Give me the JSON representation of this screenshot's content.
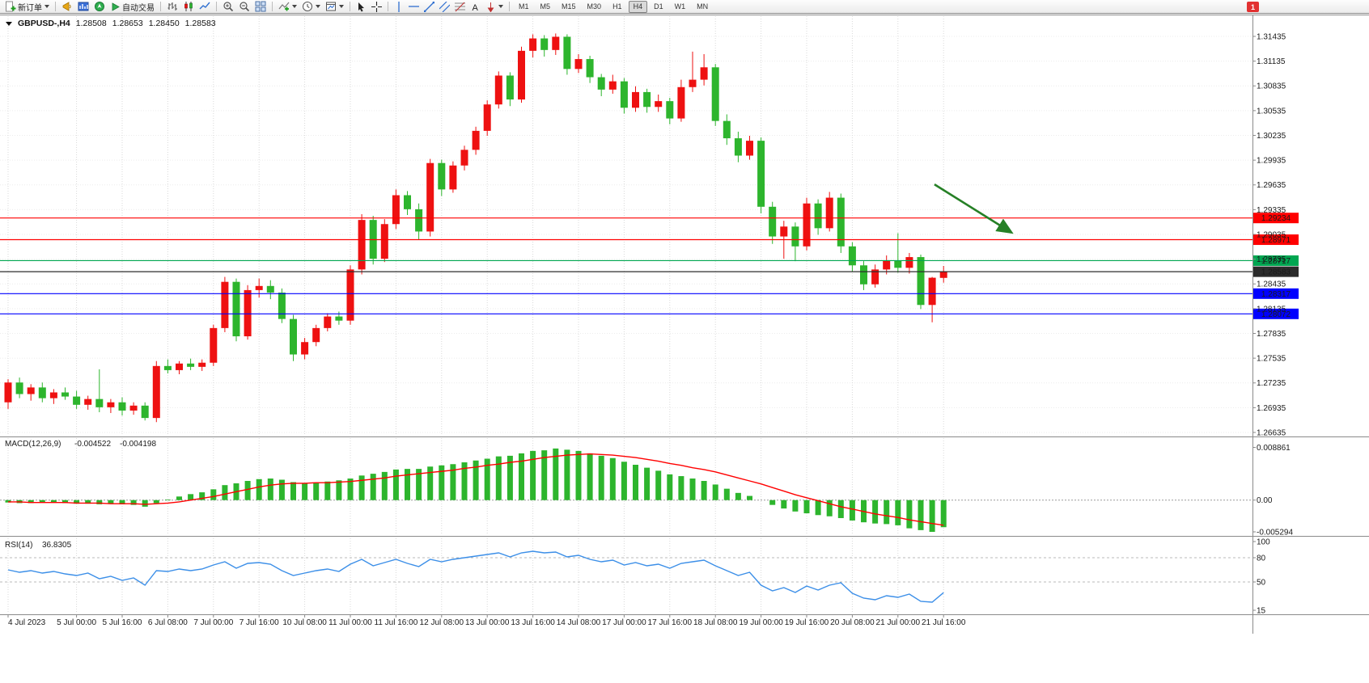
{
  "toolbar": {
    "new_order_label": "新订单",
    "autotrading_label": "自动交易",
    "text_tool_label": "A",
    "timeframes": [
      "M1",
      "M5",
      "M15",
      "M30",
      "H1",
      "H4",
      "D1",
      "W1",
      "MN"
    ],
    "active_timeframe": "H4",
    "notification_badge": "1"
  },
  "chart_header": {
    "symbol_period": "GBPUSD-,H4",
    "open": "1.28508",
    "high": "1.28653",
    "low": "1.28450",
    "close": "1.28583"
  },
  "chart_data": {
    "type": "candlestick",
    "symbol": "GBPUSD-",
    "period": "H4",
    "up_color": "#ee1111",
    "down_color": "#2db52d",
    "price_ticks": [
      "1.26635",
      "1.26935",
      "1.27235",
      "1.27535",
      "1.27835",
      "1.28135",
      "1.28435",
      "1.28735",
      "1.29035",
      "1.29335",
      "1.29635",
      "1.29935",
      "1.30235",
      "1.30535",
      "1.30835",
      "1.31135",
      "1.31435"
    ],
    "candles": [
      [
        1.27,
        1.2728,
        1.2692,
        1.2724
      ],
      [
        1.2724,
        1.273,
        1.2705,
        1.271
      ],
      [
        1.271,
        1.2722,
        1.2702,
        1.2718
      ],
      [
        1.2718,
        1.2724,
        1.27,
        1.2705
      ],
      [
        1.2705,
        1.2716,
        1.2698,
        1.2712
      ],
      [
        1.2712,
        1.2718,
        1.2703,
        1.2707
      ],
      [
        1.2707,
        1.2714,
        1.2692,
        1.2697
      ],
      [
        1.2697,
        1.2708,
        1.2691,
        1.2704
      ],
      [
        1.2704,
        1.274,
        1.2688,
        1.2694
      ],
      [
        1.2694,
        1.2704,
        1.2687,
        1.27
      ],
      [
        1.27,
        1.2706,
        1.2684,
        1.269
      ],
      [
        1.269,
        1.27,
        1.2685,
        1.2696
      ],
      [
        1.2696,
        1.27,
        1.2678,
        1.2681
      ],
      [
        1.2681,
        1.275,
        1.2676,
        1.2744
      ],
      [
        1.2744,
        1.2752,
        1.2735,
        1.2739
      ],
      [
        1.2739,
        1.275,
        1.2734,
        1.2747
      ],
      [
        1.2747,
        1.2753,
        1.2739,
        1.2743
      ],
      [
        1.2743,
        1.2752,
        1.2738,
        1.2748
      ],
      [
        1.2748,
        1.2794,
        1.2744,
        1.279
      ],
      [
        1.279,
        1.2852,
        1.2785,
        1.2846
      ],
      [
        1.2846,
        1.285,
        1.2774,
        1.278
      ],
      [
        1.278,
        1.2842,
        1.2776,
        1.2836
      ],
      [
        1.2836,
        1.285,
        1.2827,
        1.2841
      ],
      [
        1.2841,
        1.2848,
        1.2825,
        1.2833
      ],
      [
        1.2833,
        1.2838,
        1.2796,
        1.2801
      ],
      [
        1.2801,
        1.2806,
        1.275,
        1.2758
      ],
      [
        1.2758,
        1.2778,
        1.2752,
        1.2773
      ],
      [
        1.2773,
        1.2794,
        1.2768,
        1.279
      ],
      [
        1.279,
        1.2808,
        1.2786,
        1.2804
      ],
      [
        1.2804,
        1.281,
        1.2794,
        1.2799
      ],
      [
        1.2799,
        1.2866,
        1.2794,
        1.2861
      ],
      [
        1.2861,
        1.2928,
        1.2855,
        1.2921
      ],
      [
        1.2921,
        1.2926,
        1.2867,
        1.2874
      ],
      [
        1.2874,
        1.2922,
        1.287,
        1.2916
      ],
      [
        1.2916,
        1.2958,
        1.291,
        1.2951
      ],
      [
        1.2951,
        1.2956,
        1.2927,
        1.2934
      ],
      [
        1.2934,
        1.2941,
        1.2897,
        1.2907
      ],
      [
        1.2907,
        1.2995,
        1.2901,
        1.299
      ],
      [
        1.299,
        1.2994,
        1.295,
        1.2958
      ],
      [
        1.2958,
        1.2992,
        1.2954,
        1.2987
      ],
      [
        1.2987,
        1.3011,
        1.2981,
        1.3006
      ],
      [
        1.3006,
        1.3034,
        1.3,
        1.3029
      ],
      [
        1.3029,
        1.3066,
        1.3023,
        1.3061
      ],
      [
        1.3061,
        1.3101,
        1.3056,
        1.3096
      ],
      [
        1.3096,
        1.31,
        1.3059,
        1.3067
      ],
      [
        1.3067,
        1.3131,
        1.3063,
        1.3126
      ],
      [
        1.3126,
        1.3146,
        1.3118,
        1.3141
      ],
      [
        1.3141,
        1.3145,
        1.3119,
        1.3127
      ],
      [
        1.3127,
        1.3147,
        1.3121,
        1.3143
      ],
      [
        1.3143,
        1.3146,
        1.3097,
        1.3104
      ],
      [
        1.3104,
        1.3122,
        1.3099,
        1.3116
      ],
      [
        1.3116,
        1.312,
        1.3087,
        1.3094
      ],
      [
        1.3094,
        1.3098,
        1.3071,
        1.3079
      ],
      [
        1.3079,
        1.3097,
        1.3074,
        1.3089
      ],
      [
        1.3089,
        1.3093,
        1.305,
        1.3057
      ],
      [
        1.3057,
        1.3083,
        1.3052,
        1.3076
      ],
      [
        1.3076,
        1.308,
        1.3051,
        1.3058
      ],
      [
        1.3058,
        1.3073,
        1.3052,
        1.3065
      ],
      [
        1.3065,
        1.3069,
        1.3037,
        1.3044
      ],
      [
        1.3044,
        1.3091,
        1.304,
        1.3082
      ],
      [
        1.3082,
        1.3125,
        1.3076,
        1.3091
      ],
      [
        1.3091,
        1.3122,
        1.3084,
        1.3106
      ],
      [
        1.3106,
        1.311,
        1.3035,
        1.3041
      ],
      [
        1.3041,
        1.3049,
        1.3012,
        1.302
      ],
      [
        1.302,
        1.3028,
        1.2991,
        1.2999
      ],
      [
        1.2999,
        1.3023,
        1.2994,
        1.3017
      ],
      [
        1.3017,
        1.3021,
        1.2929,
        1.2937
      ],
      [
        1.2937,
        1.2943,
        1.2892,
        1.2901
      ],
      [
        1.2901,
        1.292,
        1.2874,
        1.2913
      ],
      [
        1.2913,
        1.2918,
        1.2871,
        1.2889
      ],
      [
        1.2889,
        1.2948,
        1.2884,
        1.2941
      ],
      [
        1.2941,
        1.2946,
        1.2903,
        1.2911
      ],
      [
        1.2911,
        1.2955,
        1.2907,
        1.2948
      ],
      [
        1.2948,
        1.2953,
        1.2881,
        1.2889
      ],
      [
        1.2889,
        1.2894,
        1.2858,
        1.2866
      ],
      [
        1.2866,
        1.2871,
        1.2836,
        1.2843
      ],
      [
        1.2843,
        1.2867,
        1.2839,
        1.2861
      ],
      [
        1.2861,
        1.2878,
        1.2855,
        1.2872
      ],
      [
        1.2872,
        1.2905,
        1.2857,
        1.2863
      ],
      [
        1.2863,
        1.2881,
        1.2856,
        1.2876
      ],
      [
        1.2876,
        1.2879,
        1.2813,
        1.2818
      ],
      [
        1.2818,
        1.2852,
        1.2797,
        1.2851
      ],
      [
        1.28508,
        1.28653,
        1.2845,
        1.28583
      ]
    ],
    "time_labels": [
      {
        "text": "4 Jul 2023",
        "bar": 0
      },
      {
        "text": "5 Jul 00:00",
        "bar": 6
      },
      {
        "text": "5 Jul 16:00",
        "bar": 10
      },
      {
        "text": "6 Jul 08:00",
        "bar": 14
      },
      {
        "text": "7 Jul 00:00",
        "bar": 18
      },
      {
        "text": "7 Jul 16:00",
        "bar": 22
      },
      {
        "text": "10 Jul 08:00",
        "bar": 26
      },
      {
        "text": "11 Jul 00:00",
        "bar": 30
      },
      {
        "text": "11 Jul 16:00",
        "bar": 34
      },
      {
        "text": "12 Jul 08:00",
        "bar": 38
      },
      {
        "text": "13 Jul 00:00",
        "bar": 42
      },
      {
        "text": "13 Jul 16:00",
        "bar": 46
      },
      {
        "text": "14 Jul 08:00",
        "bar": 50
      },
      {
        "text": "17 Jul 00:00",
        "bar": 54
      },
      {
        "text": "17 Jul 16:00",
        "bar": 58
      },
      {
        "text": "18 Jul 08:00",
        "bar": 62
      },
      {
        "text": "19 Jul 00:00",
        "bar": 66
      },
      {
        "text": "19 Jul 16:00",
        "bar": 70
      },
      {
        "text": "20 Jul 08:00",
        "bar": 74
      },
      {
        "text": "21 Jul 00:00",
        "bar": 78
      },
      {
        "text": "21 Jul 16:00",
        "bar": 82
      }
    ],
    "hlines": [
      {
        "price": 1.29234,
        "label": "1.29234",
        "color": "#ff0000"
      },
      {
        "price": 1.28971,
        "label": "1.28971",
        "color": "#ff0000"
      },
      {
        "price": 1.28717,
        "label": "1.28717",
        "color": "#00a651"
      },
      {
        "price": 1.28583,
        "label": "1.28583",
        "color": "#2b2b2b"
      },
      {
        "price": 1.28317,
        "label": "1.28317",
        "color": "#0000ff"
      },
      {
        "price": 1.28072,
        "label": "1.28072",
        "color": "#0000ff"
      }
    ],
    "arrow_object": {
      "from_bar": 81.2,
      "from_price": 1.29641,
      "to_bar": 87.9,
      "to_price": 1.29062,
      "color": "#268026"
    },
    "macd": {
      "name": "MACD(12,26,9)",
      "main_value": "-0.004522",
      "signal_value": "-0.004198",
      "histogram_color": "#2db52d",
      "signal_color": "#ff0000",
      "scale": {
        "max": 0.008861,
        "min": -0.005294,
        "labels": [
          "0.008861",
          "0.00",
          "-0.005294"
        ]
      },
      "histogram": [
        -0.0004,
        -0.0005,
        -0.0005,
        -0.0004,
        -0.0004,
        -0.0005,
        -0.0006,
        -0.0006,
        -0.0007,
        -0.0006,
        -0.0007,
        -0.0008,
        -0.0011,
        -0.0005,
        0.0001,
        0.0006,
        0.001,
        0.0013,
        0.0018,
        0.0025,
        0.0028,
        0.0032,
        0.0035,
        0.0036,
        0.0034,
        0.003,
        0.0028,
        0.0029,
        0.0031,
        0.0033,
        0.0036,
        0.0041,
        0.0044,
        0.0047,
        0.0051,
        0.0052,
        0.0052,
        0.0056,
        0.0058,
        0.006,
        0.0063,
        0.0066,
        0.0069,
        0.0073,
        0.0074,
        0.0078,
        0.0082,
        0.0083,
        0.0086,
        0.0084,
        0.0082,
        0.0078,
        0.0074,
        0.007,
        0.0064,
        0.0059,
        0.0054,
        0.0049,
        0.0043,
        0.004,
        0.0036,
        0.0032,
        0.0026,
        0.0019,
        0.0012,
        0.0007,
        0.0,
        -0.0008,
        -0.0014,
        -0.0019,
        -0.0022,
        -0.0025,
        -0.0027,
        -0.003,
        -0.0034,
        -0.0037,
        -0.0039,
        -0.004,
        -0.0042,
        -0.0047,
        -0.005,
        -0.005294,
        -0.004522
      ],
      "signal": [
        -0.0003,
        -0.0003,
        -0.0004,
        -0.0004,
        -0.0004,
        -0.0004,
        -0.0005,
        -0.0005,
        -0.0005,
        -0.0006,
        -0.0006,
        -0.0006,
        -0.0007,
        -0.0006,
        -0.0005,
        -0.0003,
        0.0,
        0.0003,
        0.0006,
        0.001,
        0.0014,
        0.0018,
        0.0022,
        0.0025,
        0.0027,
        0.0028,
        0.0028,
        0.0029,
        0.0029,
        0.003,
        0.0031,
        0.0033,
        0.0035,
        0.0037,
        0.004,
        0.0042,
        0.0044,
        0.0046,
        0.0048,
        0.005,
        0.0053,
        0.0055,
        0.0058,
        0.006,
        0.0063,
        0.0065,
        0.0068,
        0.0071,
        0.0073,
        0.0075,
        0.0076,
        0.0077,
        0.0076,
        0.0075,
        0.0073,
        0.0071,
        0.0068,
        0.0065,
        0.0061,
        0.0058,
        0.0054,
        0.0051,
        0.0047,
        0.0042,
        0.0037,
        0.0032,
        0.0027,
        0.0021,
        0.0015,
        0.0009,
        0.0004,
        -0.0001,
        -0.0006,
        -0.0011,
        -0.0015,
        -0.0019,
        -0.0023,
        -0.0026,
        -0.0029,
        -0.0033,
        -0.0036,
        -0.0039,
        -0.004198
      ]
    },
    "rsi": {
      "name": "RSI(14)",
      "value": "36.8305",
      "line_color": "#3c8fe8",
      "scale": {
        "max": 100,
        "min": 15,
        "labels": [
          "100",
          "80",
          "50",
          "15"
        ],
        "levels": [
          80,
          50
        ]
      },
      "values": [
        65,
        62,
        64,
        61,
        63,
        60,
        58,
        61,
        54,
        57,
        52,
        55,
        46,
        64,
        63,
        66,
        64,
        66,
        71,
        75,
        67,
        73,
        74,
        72,
        64,
        58,
        61,
        64,
        66,
        63,
        72,
        78,
        70,
        74,
        78,
        73,
        69,
        78,
        75,
        78,
        80,
        82,
        84,
        86,
        81,
        86,
        88,
        86,
        87,
        81,
        83,
        78,
        75,
        77,
        71,
        74,
        70,
        72,
        67,
        73,
        75,
        77,
        70,
        64,
        58,
        62,
        46,
        39,
        43,
        37,
        45,
        40,
        46,
        49,
        36,
        30,
        28,
        33,
        31,
        35,
        26,
        25,
        36.8305
      ]
    }
  }
}
